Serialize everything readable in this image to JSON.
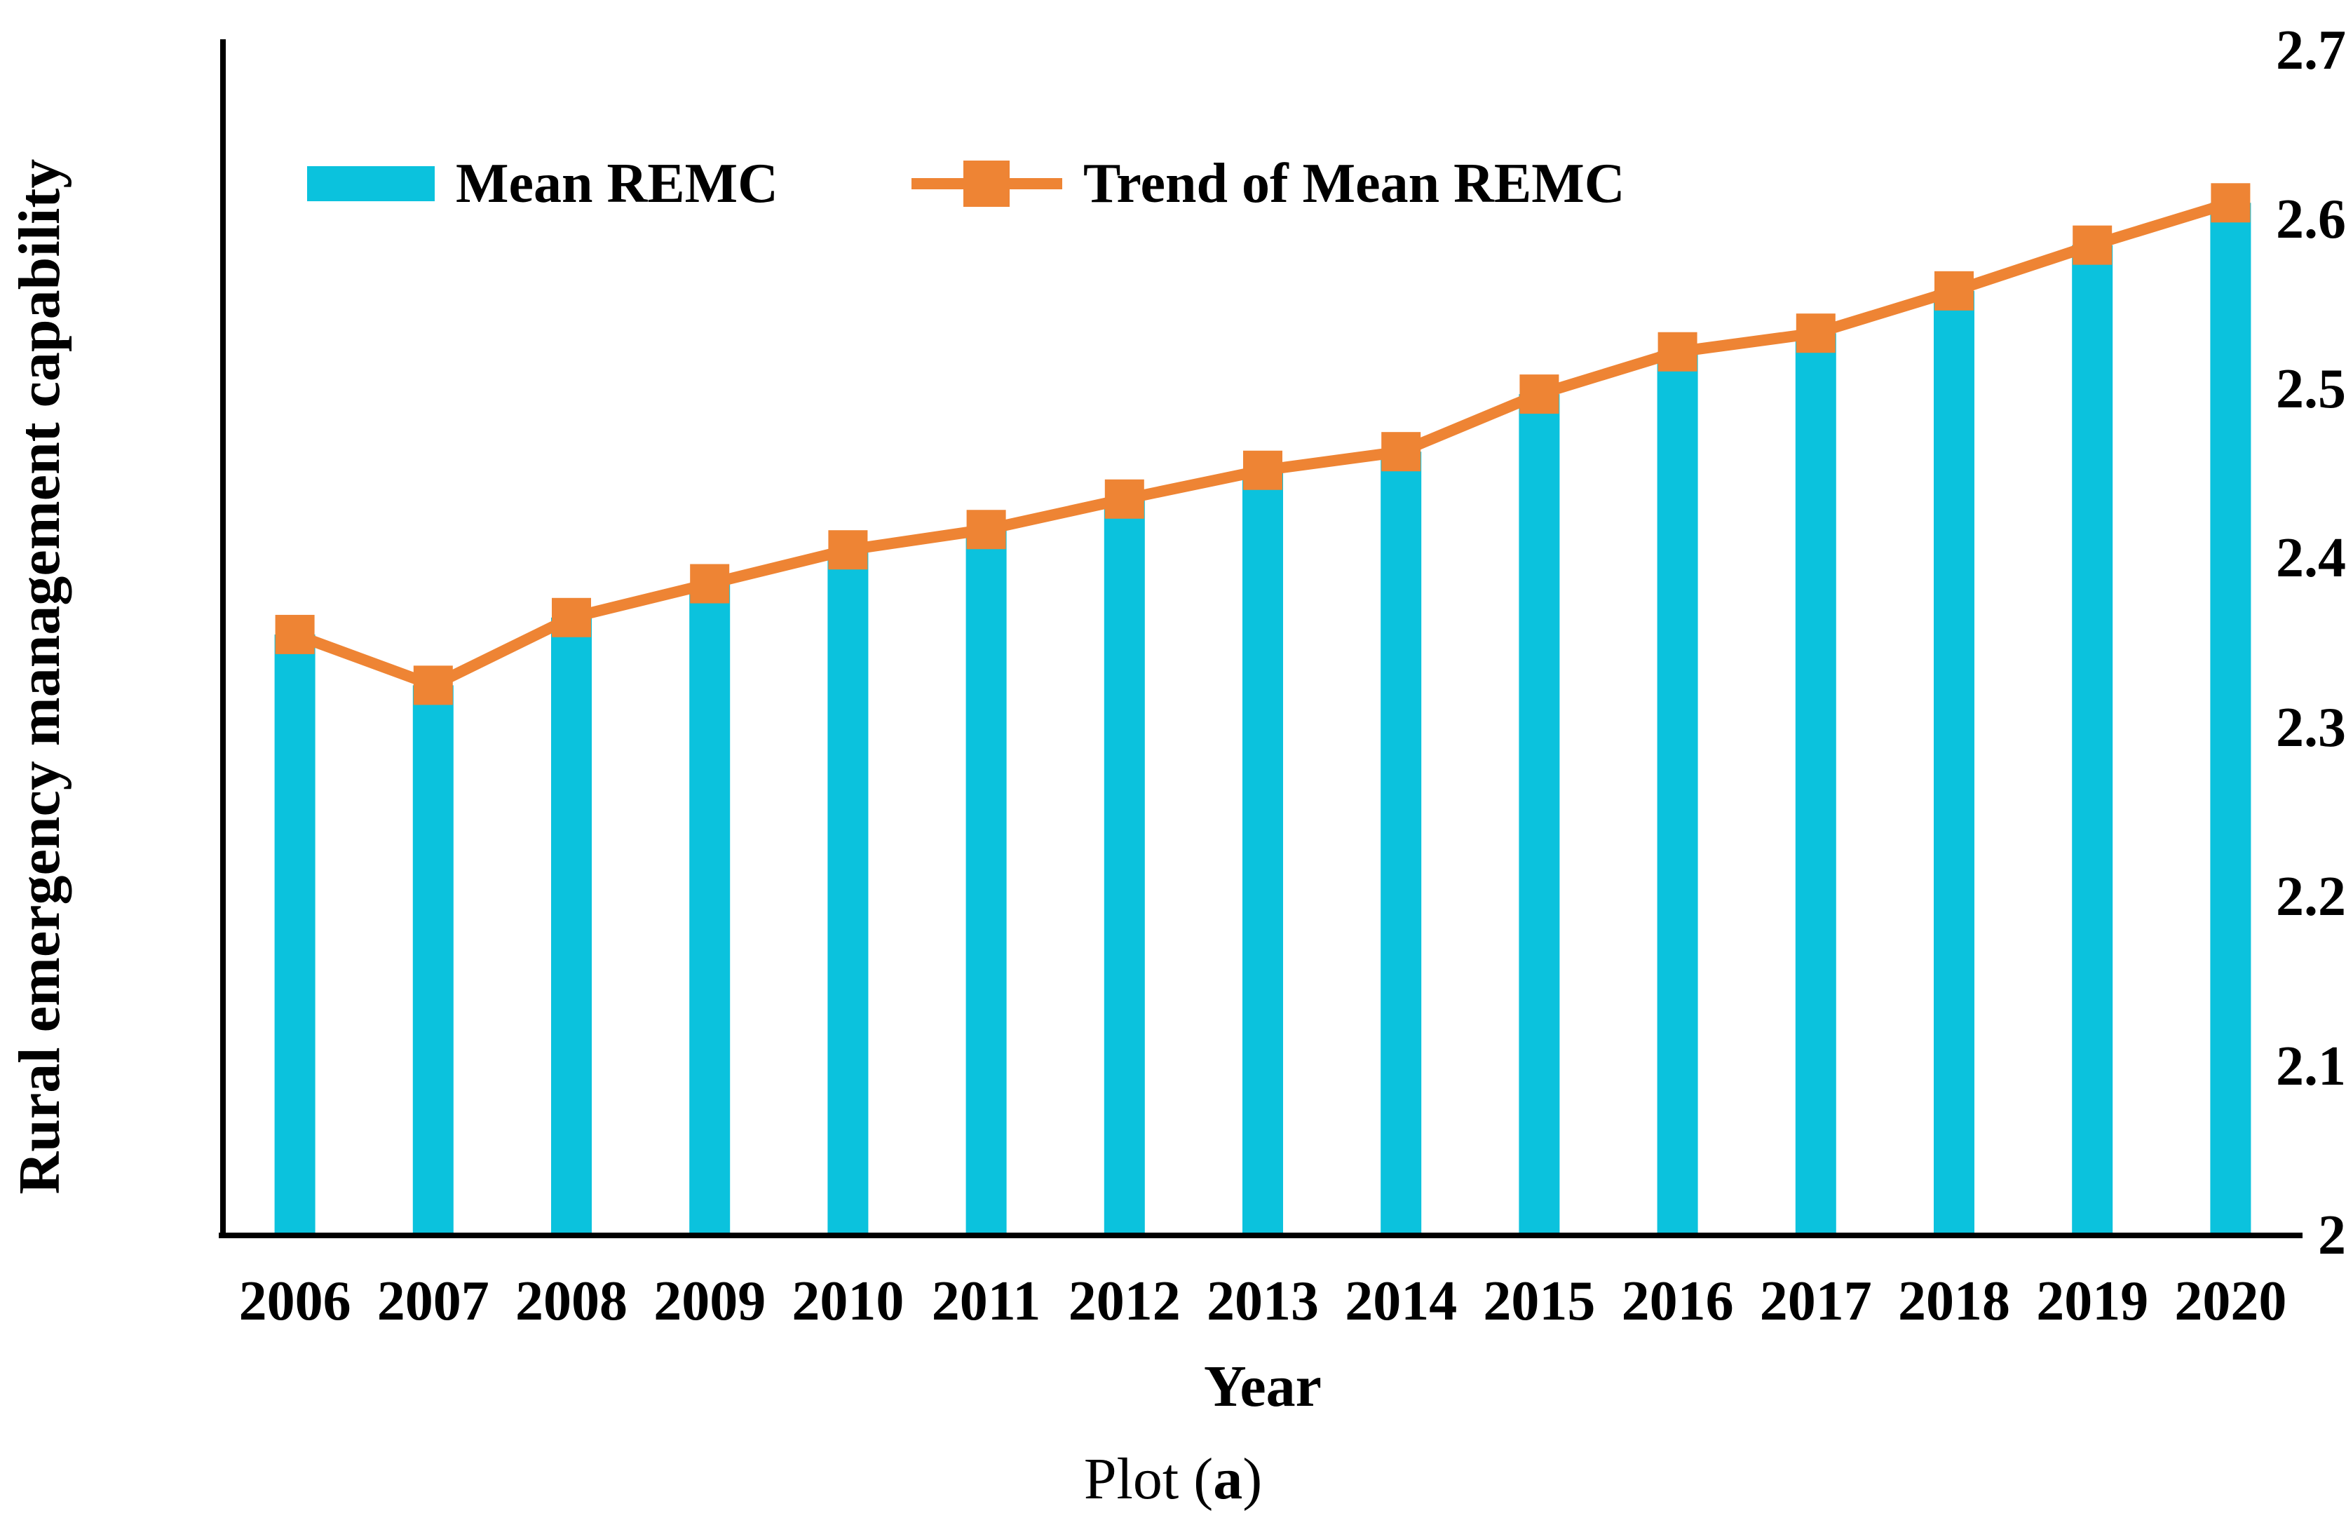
{
  "chart_data": {
    "type": "bar",
    "categories": [
      "2006",
      "2007",
      "2008",
      "2009",
      "2010",
      "2011",
      "2012",
      "2013",
      "2014",
      "2015",
      "2016",
      "2017",
      "2018",
      "2019",
      "2020"
    ],
    "series": [
      {
        "name": "Mean REMC",
        "type": "bar",
        "color": "#0bc2dd",
        "values": [
          2.355,
          2.325,
          2.365,
          2.385,
          2.405,
          2.417,
          2.435,
          2.452,
          2.463,
          2.497,
          2.522,
          2.533,
          2.558,
          2.585,
          2.61
        ]
      },
      {
        "name": "Trend of Mean REMC",
        "type": "line",
        "color": "#ee8434",
        "marker": "square",
        "values": [
          2.355,
          2.325,
          2.365,
          2.385,
          2.405,
          2.417,
          2.435,
          2.452,
          2.463,
          2.497,
          2.522,
          2.533,
          2.558,
          2.585,
          2.61
        ]
      }
    ],
    "title": "",
    "xlabel": "Year",
    "ylabel": "Rural emergency management capability",
    "ylim": [
      2,
      2.7
    ],
    "yticks": [
      "2.7",
      "2.6",
      "2.5",
      "2.4",
      "2.3",
      "2.2",
      "2.1",
      "2"
    ],
    "grid": false,
    "legend_position": "top-left",
    "axis_color": "#000000",
    "caption": {
      "prefix": "Plot (",
      "emph": "a",
      "suffix": ")"
    }
  }
}
